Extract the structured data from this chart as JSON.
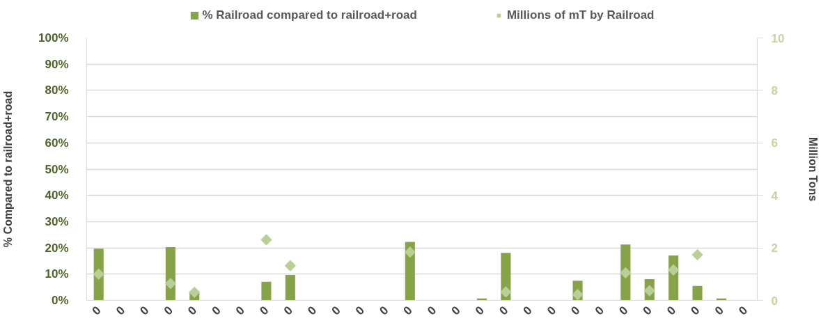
{
  "chart_data": {
    "type": "bar",
    "categories": [
      "0",
      "0",
      "0",
      "0",
      "0",
      "0",
      "0",
      "0",
      "0",
      "0",
      "0",
      "0",
      "0",
      "0",
      "0",
      "0",
      "0",
      "0",
      "0",
      "0",
      "0",
      "0",
      "0",
      "0",
      "0",
      "0",
      "0",
      "0"
    ],
    "ylabel": "% Compared to railroad+road",
    "y2label": "Million Tons",
    "ylim": [
      0,
      100
    ],
    "yticks": [
      {
        "value": 0,
        "label": "0%"
      },
      {
        "value": 10,
        "label": "10%"
      },
      {
        "value": 20,
        "label": "20%"
      },
      {
        "value": 30,
        "label": "30%"
      },
      {
        "value": 40,
        "label": "40%"
      },
      {
        "value": 50,
        "label": "50%"
      },
      {
        "value": 60,
        "label": "60%"
      },
      {
        "value": 70,
        "label": "70%"
      },
      {
        "value": 80,
        "label": "80%"
      },
      {
        "value": 90,
        "label": "90%"
      },
      {
        "value": 100,
        "label": "100%"
      }
    ],
    "y2lim": [
      0,
      10
    ],
    "y2ticks": [
      0,
      2,
      4,
      6,
      8,
      10
    ],
    "grid": "y",
    "legend": "top",
    "series": [
      {
        "name": "% Railroad compared to railroad+road",
        "color": "#86a34a",
        "values": [
          19.7,
          null,
          null,
          20.3,
          3,
          null,
          null,
          7.1,
          9.7,
          null,
          null,
          null,
          null,
          22.3,
          null,
          null,
          0.7,
          18.1,
          null,
          null,
          7.5,
          null,
          21.3,
          8.1,
          17.1,
          5.5,
          0.7,
          null
        ]
      },
      {
        "name": "Millions of mT by Railroad",
        "type": "scatter",
        "marker": "diamond",
        "axis": "y2",
        "color": "#b9cf97",
        "values": [
          1.0,
          null,
          null,
          0.64,
          0.31,
          null,
          null,
          2.31,
          1.32,
          null,
          null,
          null,
          null,
          1.84,
          null,
          null,
          null,
          0.32,
          null,
          null,
          0.22,
          null,
          1.05,
          0.37,
          1.16,
          1.74,
          null,
          null
        ]
      }
    ]
  }
}
